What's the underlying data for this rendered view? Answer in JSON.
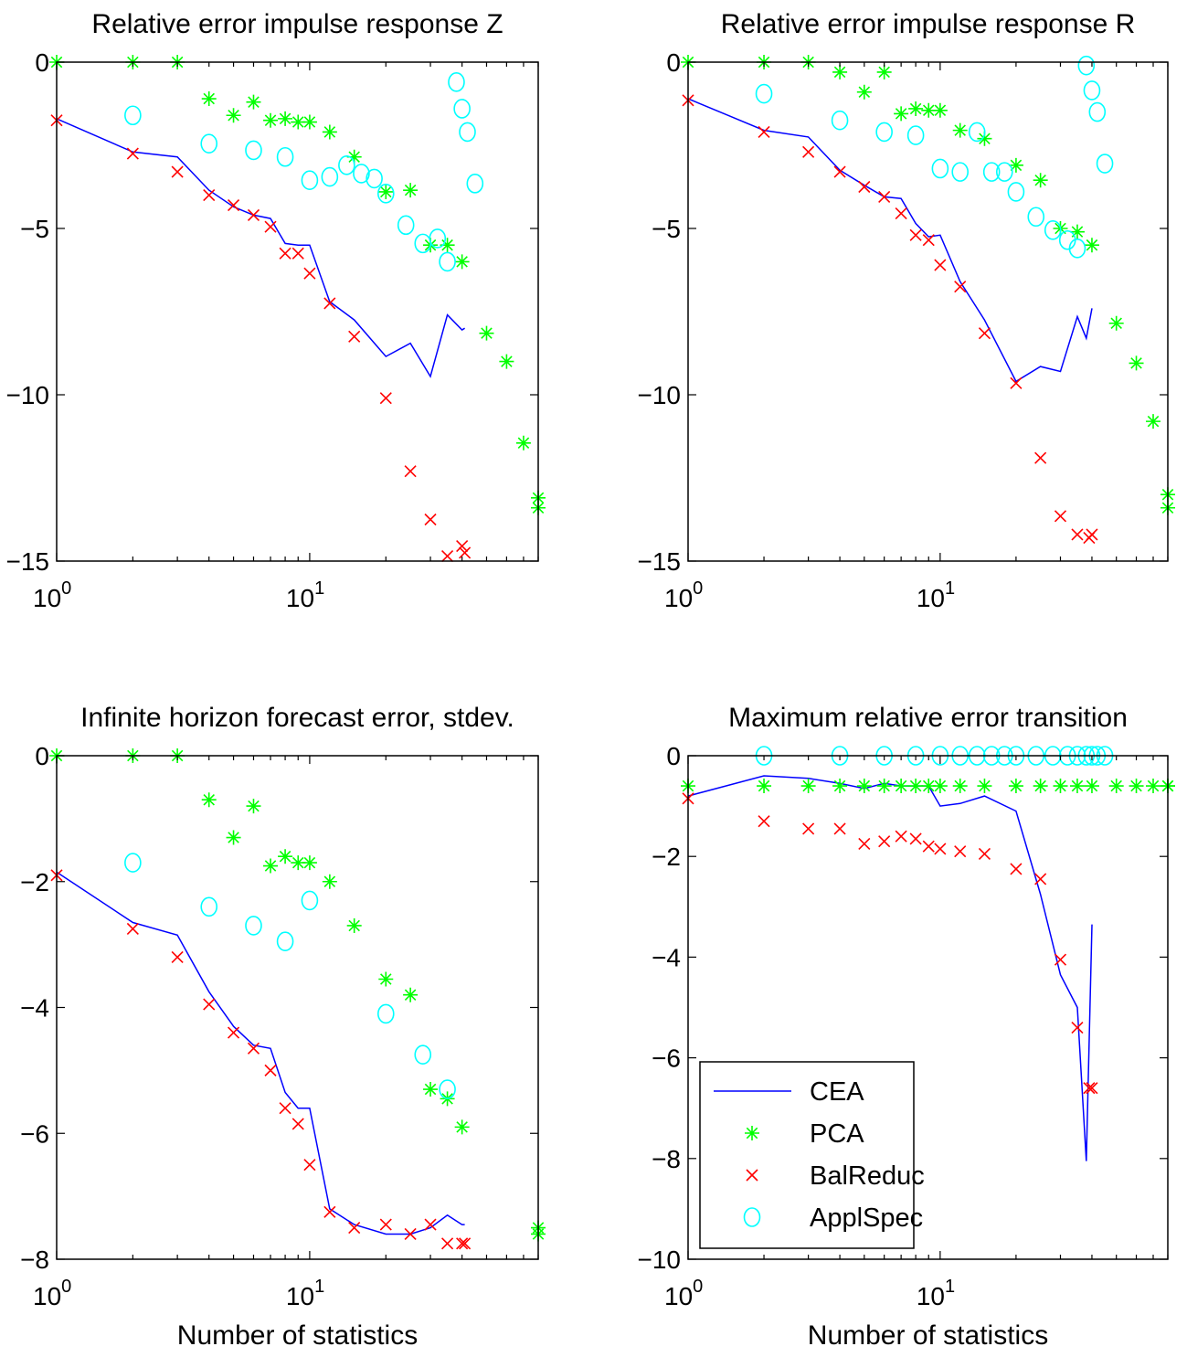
{
  "colors": {
    "CEA": "#0000ff",
    "PCA": "#00ff00",
    "BalReduc": "#ff0000",
    "ApplSpec": "#00ffff",
    "axes": "#000000"
  },
  "legend": {
    "entries": [
      {
        "name": "CEA",
        "marker": "line"
      },
      {
        "name": "PCA",
        "marker": "star"
      },
      {
        "name": "BalReduc",
        "marker": "x"
      },
      {
        "name": "ApplSpec",
        "marker": "circle"
      }
    ]
  },
  "chart_data": [
    {
      "type": "line",
      "title": "Relative error impulse response Z",
      "xlabel": "",
      "ylabel": "",
      "xscale": "log",
      "xlim": [
        1,
        80
      ],
      "ylim": [
        -15,
        0
      ],
      "xticks": [
        1,
        10
      ],
      "xticklabels": [
        {
          "base": "10",
          "exp": "0"
        },
        {
          "base": "10",
          "exp": "1"
        }
      ],
      "yticks": [
        -15,
        -10,
        -5,
        0
      ],
      "yticklabels": [
        "−15",
        "−10",
        "−5",
        "0"
      ],
      "series": [
        {
          "name": "CEA",
          "style": "line",
          "x": [
            1,
            2,
            3,
            4,
            5,
            6,
            7,
            8,
            9,
            10,
            12,
            15,
            20,
            25,
            30,
            35,
            40,
            41
          ],
          "y": [
            -1.7,
            -2.7,
            -2.85,
            -3.85,
            -4.35,
            -4.6,
            -4.7,
            -5.45,
            -5.5,
            -5.5,
            -7.2,
            -7.75,
            -8.85,
            -8.45,
            -9.45,
            -7.6,
            -8.05,
            -8.0
          ]
        },
        {
          "name": "PCA",
          "style": "star",
          "x": [
            1,
            2,
            3,
            4,
            5,
            6,
            7,
            8,
            9,
            10,
            12,
            15,
            20,
            25,
            30,
            35,
            40,
            50,
            60,
            70,
            80,
            80
          ],
          "y": [
            0,
            0,
            0,
            -1.1,
            -1.6,
            -1.2,
            -1.75,
            -1.7,
            -1.8,
            -1.8,
            -2.1,
            -2.85,
            -3.9,
            -3.85,
            -5.5,
            -5.5,
            -6.0,
            -8.15,
            -9.0,
            -11.45,
            -13.1,
            -13.4
          ]
        },
        {
          "name": "BalReduc",
          "style": "x",
          "x": [
            1,
            2,
            3,
            4,
            5,
            6,
            7,
            8,
            9,
            10,
            12,
            15,
            20,
            25,
            30,
            35,
            40,
            41
          ],
          "y": [
            -1.75,
            -2.75,
            -3.3,
            -4.0,
            -4.3,
            -4.6,
            -4.95,
            -5.75,
            -5.75,
            -6.35,
            -7.25,
            -8.25,
            -10.1,
            -12.3,
            -13.75,
            -14.85,
            -14.55,
            -14.75
          ]
        },
        {
          "name": "ApplSpec",
          "style": "circle",
          "x": [
            2,
            4,
            6,
            8,
            10,
            12,
            14,
            16,
            18,
            20,
            24,
            28,
            32,
            35,
            38,
            40,
            42,
            45
          ],
          "y": [
            -1.6,
            -2.45,
            -2.65,
            -2.85,
            -3.55,
            -3.45,
            -3.1,
            -3.35,
            -3.5,
            -3.95,
            -4.9,
            -5.45,
            -5.3,
            -6.0,
            -0.6,
            -1.4,
            -2.1,
            -3.65
          ]
        }
      ]
    },
    {
      "type": "line",
      "title": "Relative error impulse response R",
      "xlabel": "",
      "ylabel": "",
      "xscale": "log",
      "xlim": [
        1,
        80
      ],
      "ylim": [
        -15,
        0
      ],
      "xticks": [
        1,
        10
      ],
      "xticklabels": [
        {
          "base": "10",
          "exp": "0"
        },
        {
          "base": "10",
          "exp": "1"
        }
      ],
      "yticks": [
        -15,
        -10,
        -5,
        0
      ],
      "yticklabels": [
        "−15",
        "−10",
        "−5",
        "0"
      ],
      "series": [
        {
          "name": "CEA",
          "style": "line",
          "x": [
            1,
            2,
            3,
            4,
            5,
            6,
            7,
            8,
            9,
            10,
            12,
            15,
            20,
            25,
            30,
            35,
            38,
            40
          ],
          "y": [
            -1.1,
            -2.05,
            -2.25,
            -3.25,
            -3.7,
            -4.05,
            -4.1,
            -4.85,
            -5.25,
            -5.2,
            -6.6,
            -7.75,
            -9.6,
            -9.15,
            -9.3,
            -7.65,
            -8.3,
            -7.4
          ]
        },
        {
          "name": "PCA",
          "style": "star",
          "x": [
            1,
            2,
            3,
            4,
            5,
            6,
            7,
            8,
            9,
            10,
            12,
            15,
            20,
            25,
            30,
            35,
            40,
            50,
            60,
            70,
            80,
            80
          ],
          "y": [
            0,
            0,
            0,
            -0.3,
            -0.9,
            -0.3,
            -1.55,
            -1.4,
            -1.45,
            -1.45,
            -2.05,
            -2.3,
            -3.1,
            -3.55,
            -5.0,
            -5.1,
            -5.5,
            -7.85,
            -9.05,
            -10.8,
            -13.0,
            -13.4
          ]
        },
        {
          "name": "BalReduc",
          "style": "x",
          "x": [
            1,
            2,
            3,
            4,
            5,
            6,
            7,
            8,
            9,
            10,
            12,
            15,
            20,
            25,
            30,
            35,
            39,
            40
          ],
          "y": [
            -1.15,
            -2.1,
            -2.7,
            -3.3,
            -3.75,
            -4.05,
            -4.55,
            -5.2,
            -5.35,
            -6.1,
            -6.75,
            -8.15,
            -9.65,
            -11.9,
            -13.65,
            -14.2,
            -14.3,
            -14.2
          ]
        },
        {
          "name": "ApplSpec",
          "style": "circle",
          "x": [
            2,
            4,
            6,
            8,
            10,
            12,
            14,
            16,
            18,
            20,
            24,
            28,
            32,
            35,
            38,
            40,
            42,
            45
          ],
          "y": [
            -0.95,
            -1.75,
            -2.1,
            -2.2,
            -3.2,
            -3.3,
            -2.1,
            -3.3,
            -3.3,
            -3.9,
            -4.65,
            -5.05,
            -5.35,
            -5.6,
            -0.1,
            -0.85,
            -1.5,
            -3.05
          ]
        }
      ]
    },
    {
      "type": "line",
      "title": "Infinite horizon forecast error, stdev.",
      "xlabel": "Number of statistics",
      "ylabel": "",
      "xscale": "log",
      "xlim": [
        1,
        80
      ],
      "ylim": [
        -8,
        0
      ],
      "xticks": [
        1,
        10
      ],
      "xticklabels": [
        {
          "base": "10",
          "exp": "0"
        },
        {
          "base": "10",
          "exp": "1"
        }
      ],
      "yticks": [
        -8,
        -6,
        -4,
        -2,
        0
      ],
      "yticklabels": [
        "−8",
        "−6",
        "−4",
        "−2",
        "0"
      ],
      "series": [
        {
          "name": "CEA",
          "style": "line",
          "x": [
            1,
            2,
            3,
            4,
            5,
            6,
            7,
            8,
            9,
            10,
            12,
            15,
            20,
            25,
            30,
            35,
            40,
            41
          ],
          "y": [
            -1.85,
            -2.65,
            -2.85,
            -3.75,
            -4.3,
            -4.6,
            -4.65,
            -5.35,
            -5.6,
            -5.6,
            -7.2,
            -7.45,
            -7.6,
            -7.6,
            -7.5,
            -7.3,
            -7.45,
            -7.45
          ]
        },
        {
          "name": "PCA",
          "style": "star",
          "x": [
            1,
            2,
            3,
            4,
            5,
            6,
            7,
            8,
            9,
            10,
            12,
            15,
            20,
            25,
            30,
            35,
            40,
            80,
            80
          ],
          "y": [
            0,
            0,
            0,
            -0.7,
            -1.3,
            -0.8,
            -1.75,
            -1.6,
            -1.7,
            -1.7,
            -2.0,
            -2.7,
            -3.55,
            -3.8,
            -5.3,
            -5.45,
            -5.9,
            -7.5,
            -7.6
          ]
        },
        {
          "name": "BalReduc",
          "style": "x",
          "x": [
            1,
            2,
            3,
            4,
            5,
            6,
            7,
            8,
            9,
            10,
            12,
            15,
            20,
            25,
            30,
            35,
            40,
            41
          ],
          "y": [
            -1.9,
            -2.75,
            -3.2,
            -3.95,
            -4.4,
            -4.65,
            -5.0,
            -5.6,
            -5.85,
            -6.5,
            -7.25,
            -7.5,
            -7.45,
            -7.6,
            -7.45,
            -7.75,
            -7.75,
            -7.75
          ]
        },
        {
          "name": "ApplSpec",
          "style": "circle",
          "x": [
            2,
            4,
            6,
            8,
            10,
            20,
            28,
            35
          ],
          "y": [
            -1.7,
            -2.4,
            -2.7,
            -2.95,
            -2.3,
            -4.1,
            -4.75,
            -5.3
          ]
        }
      ]
    },
    {
      "type": "line",
      "title": "Maximum relative error transition",
      "xlabel": "Number of statistics",
      "ylabel": "",
      "xscale": "log",
      "xlim": [
        1,
        80
      ],
      "ylim": [
        -10,
        0
      ],
      "xticks": [
        1,
        10
      ],
      "xticklabels": [
        {
          "base": "10",
          "exp": "0"
        },
        {
          "base": "10",
          "exp": "1"
        }
      ],
      "yticks": [
        -10,
        -8,
        -6,
        -4,
        -2,
        0
      ],
      "yticklabels": [
        "−10",
        "−8",
        "−6",
        "−4",
        "−2",
        "0"
      ],
      "legend_position": "bottom-left",
      "series": [
        {
          "name": "CEA",
          "style": "line",
          "x": [
            1,
            2,
            3,
            4,
            5,
            6,
            7,
            8,
            9,
            10,
            12,
            15,
            20,
            25,
            30,
            35,
            38,
            40
          ],
          "y": [
            -0.8,
            -0.4,
            -0.45,
            -0.55,
            -0.65,
            -0.55,
            -0.6,
            -0.6,
            -0.6,
            -1.0,
            -0.95,
            -0.8,
            -1.1,
            -2.75,
            -4.35,
            -5.0,
            -8.05,
            -3.35
          ]
        },
        {
          "name": "PCA",
          "style": "star",
          "x": [
            1,
            2,
            3,
            4,
            5,
            6,
            7,
            8,
            9,
            10,
            12,
            15,
            20,
            25,
            30,
            35,
            40,
            50,
            60,
            70,
            80,
            80
          ],
          "y": [
            -0.6,
            -0.6,
            -0.6,
            -0.6,
            -0.6,
            -0.6,
            -0.6,
            -0.6,
            -0.6,
            -0.6,
            -0.6,
            -0.6,
            -0.6,
            -0.6,
            -0.6,
            -0.6,
            -0.6,
            -0.6,
            -0.6,
            -0.6,
            -0.6,
            -0.6
          ]
        },
        {
          "name": "BalReduc",
          "style": "x",
          "x": [
            1,
            2,
            3,
            4,
            5,
            6,
            7,
            8,
            9,
            10,
            12,
            15,
            20,
            25,
            30,
            35,
            39,
            40
          ],
          "y": [
            -0.85,
            -1.3,
            -1.45,
            -1.45,
            -1.75,
            -1.7,
            -1.6,
            -1.65,
            -1.8,
            -1.85,
            -1.9,
            -1.95,
            -2.25,
            -2.45,
            -4.05,
            -5.4,
            -6.6,
            -6.6
          ]
        },
        {
          "name": "ApplSpec",
          "style": "circle",
          "x": [
            2,
            4,
            6,
            8,
            10,
            12,
            14,
            16,
            18,
            20,
            24,
            28,
            32,
            35,
            38,
            40,
            42,
            45
          ],
          "y": [
            0,
            0,
            0,
            0,
            0,
            0,
            0,
            0,
            0,
            0,
            0,
            0,
            0,
            0,
            0,
            0,
            0,
            0
          ]
        }
      ]
    }
  ]
}
